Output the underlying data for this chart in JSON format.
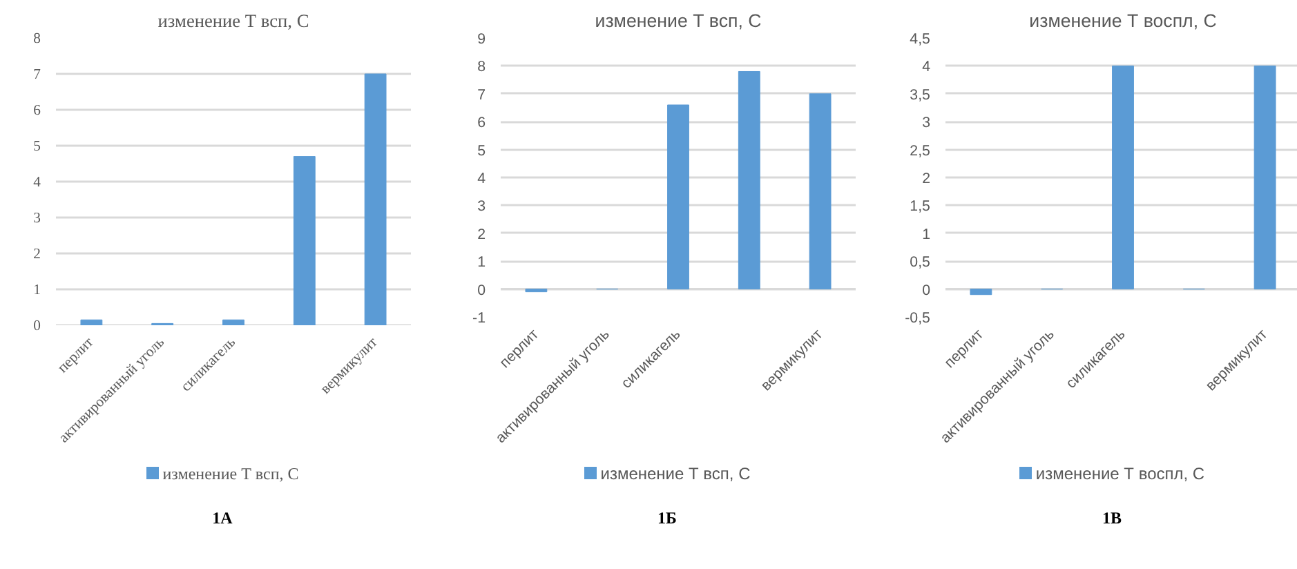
{
  "chart_data": [
    {
      "type": "bar",
      "title": "изменение Т всп, С",
      "categories": [
        "перлит",
        "активированный уголь",
        "силикагель",
        null,
        "вермикулит"
      ],
      "series": [
        {
          "name": "изменение Т всп, С",
          "color": "#5b9bd5",
          "values": [
            0.15,
            0.05,
            0.15,
            4.7,
            7
          ]
        }
      ],
      "ylim": [
        0,
        8
      ],
      "yticks": [
        0,
        1,
        2,
        3,
        4,
        5,
        6,
        7,
        8
      ],
      "grid": "y",
      "legend": "bottom",
      "annotations": [
        "1А"
      ]
    },
    {
      "type": "bar",
      "title": "изменение Т всп, С",
      "categories": [
        "перлит",
        "активированный уголь",
        "силикагель",
        null,
        "вермикулит"
      ],
      "series": [
        {
          "name": "изменение Т всп, С",
          "color": "#5b9bd5",
          "values": [
            -0.1,
            0,
            6.6,
            7.8,
            7
          ]
        }
      ],
      "ylim": [
        -1,
        9
      ],
      "yticks": [
        -1,
        0,
        1,
        2,
        3,
        4,
        5,
        6,
        7,
        8,
        9
      ],
      "grid": "y",
      "legend": "bottom",
      "annotations": [
        "1Б"
      ]
    },
    {
      "type": "bar",
      "title": "изменение Т воспл, С",
      "categories": [
        "перлит",
        "активированный уголь",
        "силикагель",
        null,
        "вермикулит"
      ],
      "series": [
        {
          "name": "изменение Т воспл, С",
          "color": "#5b9bd5",
          "values": [
            -0.1,
            0,
            4,
            0,
            4
          ]
        }
      ],
      "ylim": [
        -0.5,
        4.5
      ],
      "yticks": [
        {
          "value": -0.5,
          "label": "-0,5"
        },
        0,
        {
          "value": 0.5,
          "label": "0,5"
        },
        1,
        {
          "value": 1.5,
          "label": "1,5"
        },
        2,
        {
          "value": 2.5,
          "label": "2,5"
        },
        3,
        {
          "value": 3.5,
          "label": "3,5"
        },
        4,
        {
          "value": 4.5,
          "label": "4,5"
        }
      ],
      "grid": "y",
      "legend": "bottom",
      "annotations": [
        "1В"
      ]
    }
  ]
}
